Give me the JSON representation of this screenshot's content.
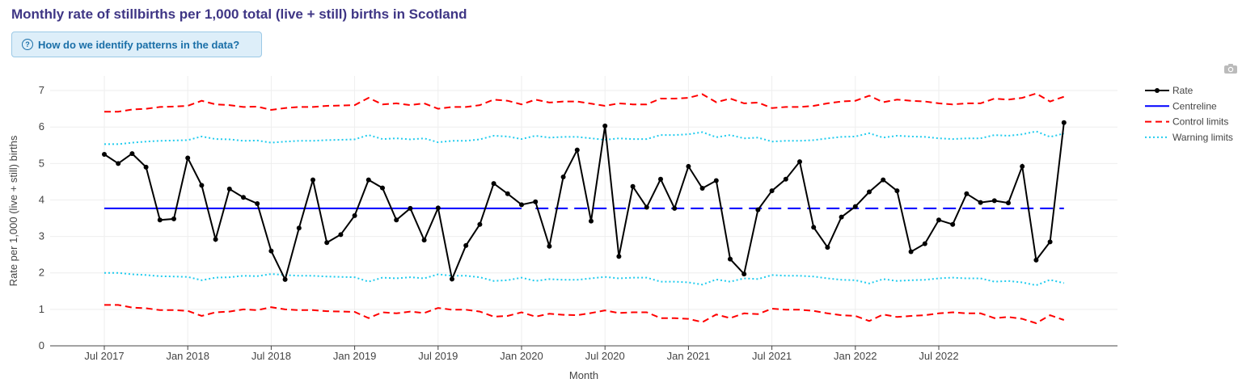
{
  "title": "Monthly rate of stillbirths per 1,000 total (live + still) births in Scotland",
  "help_button": {
    "label": "How do we identify patterns in the data?",
    "icon": "question-circle-icon"
  },
  "toolbar": {
    "camera_icon": "camera-icon"
  },
  "colors": {
    "rate": "#000000",
    "centreline": "#0000ff",
    "control": "#ff0000",
    "warning": "#22ccee",
    "title": "#3f3685"
  },
  "chart_data": {
    "type": "line",
    "title": "Monthly rate of stillbirths per 1,000 total (live + still) births in Scotland",
    "xlabel": "Month",
    "ylabel": "Rate per 1,000 (live + still) births",
    "ylim": [
      0,
      7.4
    ],
    "yticks": [
      0,
      1,
      2,
      3,
      4,
      5,
      6,
      7
    ],
    "xticks": [
      {
        "month": "2017-07",
        "label": "Jul 2017"
      },
      {
        "month": "2018-01",
        "label": "Jan 2018"
      },
      {
        "month": "2018-07",
        "label": "Jul 2018"
      },
      {
        "month": "2019-01",
        "label": "Jan 2019"
      },
      {
        "month": "2019-07",
        "label": "Jul 2019"
      },
      {
        "month": "2020-01",
        "label": "Jan 2020"
      },
      {
        "month": "2020-07",
        "label": "Jul 2020"
      },
      {
        "month": "2021-01",
        "label": "Jan 2021"
      },
      {
        "month": "2021-07",
        "label": "Jul 2021"
      },
      {
        "month": "2022-01",
        "label": "Jan 2022"
      },
      {
        "month": "2022-07",
        "label": "Jul 2022"
      }
    ],
    "start_month": "2017-07",
    "rate": [
      5.25,
      5.0,
      5.27,
      4.9,
      3.45,
      3.48,
      5.15,
      4.4,
      2.92,
      4.3,
      4.07,
      3.9,
      2.6,
      1.82,
      3.23,
      4.55,
      2.83,
      3.05,
      3.57,
      4.55,
      4.33,
      3.45,
      3.77,
      2.9,
      3.78,
      1.83,
      2.75,
      3.33,
      4.45,
      4.17,
      3.87,
      3.95,
      2.73,
      4.63,
      5.37,
      3.42,
      6.03,
      2.45,
      4.37,
      3.8,
      4.57,
      3.77,
      4.92,
      4.32,
      4.53,
      2.38,
      1.97,
      3.73,
      4.25,
      4.57,
      5.05,
      3.25,
      2.7,
      3.53,
      3.82,
      4.22,
      4.55,
      4.25,
      2.58,
      2.8,
      3.45,
      3.33,
      4.17,
      3.93,
      3.98,
      3.92,
      4.92,
      2.35,
      2.85,
      6.12
    ],
    "centreline": 3.77,
    "centreline_solid_until": "2020-01",
    "control_upper": [
      6.42,
      6.42,
      6.48,
      6.5,
      6.55,
      6.56,
      6.58,
      6.72,
      6.62,
      6.6,
      6.55,
      6.56,
      6.47,
      6.52,
      6.55,
      6.55,
      6.58,
      6.59,
      6.6,
      6.8,
      6.62,
      6.65,
      6.6,
      6.65,
      6.5,
      6.55,
      6.55,
      6.6,
      6.75,
      6.72,
      6.62,
      6.75,
      6.67,
      6.7,
      6.7,
      6.64,
      6.58,
      6.65,
      6.62,
      6.62,
      6.78,
      6.78,
      6.8,
      6.9,
      6.68,
      6.78,
      6.65,
      6.67,
      6.52,
      6.55,
      6.55,
      6.58,
      6.65,
      6.7,
      6.72,
      6.86,
      6.68,
      6.75,
      6.72,
      6.7,
      6.65,
      6.62,
      6.65,
      6.65,
      6.78,
      6.75,
      6.8,
      6.92,
      6.7,
      6.83
    ],
    "control_lower": [
      1.12,
      1.12,
      1.05,
      1.03,
      0.98,
      0.98,
      0.96,
      0.82,
      0.92,
      0.94,
      1.0,
      0.98,
      1.06,
      1.0,
      0.98,
      0.98,
      0.95,
      0.94,
      0.93,
      0.76,
      0.92,
      0.89,
      0.94,
      0.9,
      1.04,
      0.99,
      0.99,
      0.94,
      0.8,
      0.82,
      0.92,
      0.8,
      0.88,
      0.85,
      0.84,
      0.9,
      0.97,
      0.9,
      0.92,
      0.92,
      0.76,
      0.76,
      0.74,
      0.65,
      0.86,
      0.76,
      0.89,
      0.87,
      1.02,
      0.99,
      0.99,
      0.96,
      0.89,
      0.84,
      0.82,
      0.68,
      0.86,
      0.79,
      0.82,
      0.84,
      0.89,
      0.92,
      0.89,
      0.89,
      0.76,
      0.79,
      0.74,
      0.62,
      0.84,
      0.71
    ],
    "warning_upper": [
      5.53,
      5.53,
      5.57,
      5.6,
      5.62,
      5.63,
      5.64,
      5.74,
      5.67,
      5.66,
      5.62,
      5.63,
      5.57,
      5.6,
      5.62,
      5.62,
      5.64,
      5.65,
      5.66,
      5.78,
      5.67,
      5.69,
      5.66,
      5.69,
      5.58,
      5.62,
      5.62,
      5.66,
      5.76,
      5.74,
      5.67,
      5.76,
      5.71,
      5.73,
      5.73,
      5.69,
      5.65,
      5.69,
      5.67,
      5.67,
      5.78,
      5.78,
      5.8,
      5.86,
      5.72,
      5.78,
      5.69,
      5.71,
      5.6,
      5.62,
      5.62,
      5.64,
      5.69,
      5.73,
      5.74,
      5.83,
      5.71,
      5.76,
      5.74,
      5.73,
      5.69,
      5.67,
      5.69,
      5.69,
      5.78,
      5.76,
      5.8,
      5.88,
      5.73,
      5.82
    ],
    "warning_lower": [
      2.0,
      2.0,
      1.96,
      1.94,
      1.91,
      1.9,
      1.89,
      1.8,
      1.87,
      1.88,
      1.92,
      1.91,
      1.97,
      1.94,
      1.92,
      1.92,
      1.9,
      1.89,
      1.88,
      1.76,
      1.87,
      1.85,
      1.88,
      1.85,
      1.96,
      1.92,
      1.92,
      1.88,
      1.78,
      1.8,
      1.87,
      1.78,
      1.83,
      1.81,
      1.81,
      1.85,
      1.89,
      1.85,
      1.87,
      1.87,
      1.76,
      1.76,
      1.74,
      1.68,
      1.82,
      1.76,
      1.85,
      1.83,
      1.94,
      1.92,
      1.92,
      1.9,
      1.85,
      1.81,
      1.8,
      1.71,
      1.83,
      1.78,
      1.8,
      1.81,
      1.85,
      1.87,
      1.85,
      1.85,
      1.76,
      1.78,
      1.74,
      1.66,
      1.81,
      1.72
    ],
    "legend": {
      "placement": "top-right",
      "items": [
        {
          "label": "Rate",
          "style": "line-marker",
          "color": "#000000"
        },
        {
          "label": "Centreline",
          "style": "solid",
          "color": "#0000ff"
        },
        {
          "label": "Control limits",
          "style": "dashed",
          "color": "#ff0000"
        },
        {
          "label": "Warning limits",
          "style": "dotted",
          "color": "#22ccee"
        }
      ]
    },
    "grid": true
  }
}
